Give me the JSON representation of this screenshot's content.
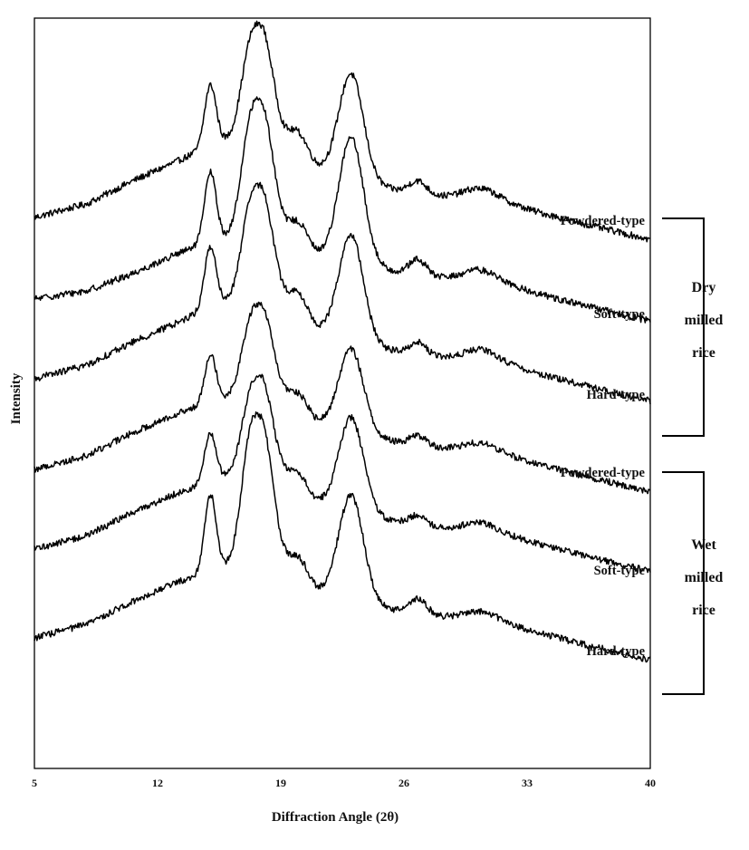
{
  "chart_data": {
    "type": "line",
    "title": "",
    "xlabel": "Diffraction Angle  (2θ)",
    "ylabel": "Intensity",
    "xlim": [
      5,
      40
    ],
    "x_ticks": [
      "5",
      "12",
      "19",
      "26",
      "33",
      "40"
    ],
    "grid": false,
    "legend": "none",
    "peaks_2theta": [
      15.0,
      17.2,
      18.0,
      23.0
    ],
    "series": [
      {
        "label": "Powdered-type",
        "group": "Dry milled rice",
        "base": [
          [
            5,
            0
          ],
          [
            8,
            5
          ],
          [
            10.5,
            13
          ],
          [
            13,
            20
          ],
          [
            15,
            26
          ],
          [
            17,
            30
          ],
          [
            18,
            34
          ],
          [
            19,
            28
          ],
          [
            21,
            18
          ],
          [
            24,
            12
          ],
          [
            27,
            8
          ],
          [
            30,
            7
          ],
          [
            33,
            3
          ],
          [
            36,
            -2
          ],
          [
            38,
            -5
          ],
          [
            40,
            -8
          ]
        ],
        "peaks": [
          [
            15.0,
            22,
            0.33
          ],
          [
            17.2,
            26,
            0.5
          ],
          [
            18.1,
            28,
            0.55
          ],
          [
            23.0,
            38,
            0.7
          ],
          [
            20.0,
            8,
            0.55
          ],
          [
            26.8,
            5,
            0.5
          ],
          [
            30.5,
            4,
            1.0
          ]
        ]
      },
      {
        "label": "Soft-type",
        "group": "Dry milled rice",
        "base": [
          [
            5,
            0
          ],
          [
            8,
            3
          ],
          [
            10.5,
            9
          ],
          [
            13,
            16
          ],
          [
            15,
            21
          ],
          [
            17,
            24
          ],
          [
            18,
            28
          ],
          [
            19,
            24
          ],
          [
            21,
            16
          ],
          [
            24,
            12
          ],
          [
            27,
            8
          ],
          [
            30,
            7
          ],
          [
            33,
            3
          ],
          [
            36,
            -2
          ],
          [
            38,
            -5
          ],
          [
            40,
            -8
          ]
        ],
        "peaks": [
          [
            15.0,
            25,
            0.33
          ],
          [
            17.2,
            32,
            0.5
          ],
          [
            18.1,
            34,
            0.55
          ],
          [
            23.0,
            45,
            0.7
          ],
          [
            20.0,
            8,
            0.55
          ],
          [
            26.8,
            6,
            0.5
          ],
          [
            30.5,
            4,
            1.0
          ]
        ]
      },
      {
        "label": "Hard-type",
        "group": "Dry milled rice",
        "base": [
          [
            5,
            0
          ],
          [
            8,
            5
          ],
          [
            10.5,
            13
          ],
          [
            13,
            20
          ],
          [
            15,
            26
          ],
          [
            17,
            30
          ],
          [
            18,
            34
          ],
          [
            19,
            28
          ],
          [
            21,
            18
          ],
          [
            24,
            12
          ],
          [
            27,
            8
          ],
          [
            30,
            7
          ],
          [
            33,
            3
          ],
          [
            36,
            -2
          ],
          [
            38,
            -5
          ],
          [
            40,
            -8
          ]
        ],
        "peaks": [
          [
            15.0,
            22,
            0.33
          ],
          [
            17.2,
            26,
            0.5
          ],
          [
            18.1,
            28,
            0.55
          ],
          [
            23.0,
            38,
            0.7
          ],
          [
            20.0,
            8,
            0.55
          ],
          [
            26.8,
            5,
            0.5
          ],
          [
            30.5,
            4,
            1.0
          ]
        ]
      },
      {
        "label": "Powdered-type",
        "group": "Wet milled rice",
        "base": [
          [
            5,
            0
          ],
          [
            8,
            5
          ],
          [
            10.5,
            13
          ],
          [
            13,
            20
          ],
          [
            15,
            24
          ],
          [
            17,
            28
          ],
          [
            18,
            32
          ],
          [
            19,
            26
          ],
          [
            21,
            17
          ],
          [
            24,
            12
          ],
          [
            27,
            8
          ],
          [
            30,
            7
          ],
          [
            33,
            3
          ],
          [
            36,
            -2
          ],
          [
            38,
            -5
          ],
          [
            40,
            -8
          ]
        ],
        "peaks": [
          [
            15.0,
            18,
            0.33
          ],
          [
            17.2,
            20,
            0.5
          ],
          [
            18.1,
            22,
            0.55
          ],
          [
            23.0,
            30,
            0.7
          ],
          [
            20.0,
            6,
            0.55
          ],
          [
            26.8,
            4,
            0.5
          ],
          [
            30.5,
            3,
            1.0
          ]
        ]
      },
      {
        "label": "Soft-type",
        "group": "Wet milled rice",
        "base": [
          [
            5,
            0
          ],
          [
            8,
            5
          ],
          [
            10.5,
            13
          ],
          [
            13,
            20
          ],
          [
            15,
            24
          ],
          [
            17,
            28
          ],
          [
            18,
            32
          ],
          [
            19,
            26
          ],
          [
            21,
            17
          ],
          [
            24,
            12
          ],
          [
            27,
            8
          ],
          [
            30,
            7
          ],
          [
            33,
            3
          ],
          [
            36,
            -2
          ],
          [
            38,
            -5
          ],
          [
            40,
            -8
          ]
        ],
        "peaks": [
          [
            15.0,
            18,
            0.33
          ],
          [
            17.2,
            22,
            0.5
          ],
          [
            18.1,
            24,
            0.55
          ],
          [
            23.0,
            34,
            0.7
          ],
          [
            20.0,
            6,
            0.55
          ],
          [
            26.8,
            4,
            0.5
          ],
          [
            30.5,
            3,
            1.0
          ]
        ]
      },
      {
        "label": "Hard-type",
        "group": "Wet milled rice",
        "base": [
          [
            5,
            0
          ],
          [
            8,
            5
          ],
          [
            10.5,
            13
          ],
          [
            13,
            20
          ],
          [
            15,
            24
          ],
          [
            17,
            28
          ],
          [
            18,
            32
          ],
          [
            19,
            26
          ],
          [
            21,
            17
          ],
          [
            24,
            12
          ],
          [
            27,
            8
          ],
          [
            30,
            7
          ],
          [
            33,
            3
          ],
          [
            36,
            -2
          ],
          [
            38,
            -5
          ],
          [
            40,
            -8
          ]
        ],
        "peaks": [
          [
            15.0,
            28,
            0.33
          ],
          [
            17.2,
            36,
            0.5
          ],
          [
            18.1,
            37,
            0.55
          ],
          [
            23.0,
            38,
            0.7
          ],
          [
            20.0,
            8,
            0.55
          ],
          [
            26.8,
            6,
            0.5
          ],
          [
            30.5,
            3,
            1.0
          ]
        ]
      }
    ],
    "groups": [
      {
        "name": "Dry milled rice",
        "lines": [
          "Dry",
          "milled",
          "rice"
        ],
        "members": [
          0,
          1,
          2
        ]
      },
      {
        "name": "Wet milled rice",
        "lines": [
          "Wet",
          "milled",
          "rice"
        ],
        "members": [
          3,
          4,
          5
        ]
      }
    ]
  }
}
